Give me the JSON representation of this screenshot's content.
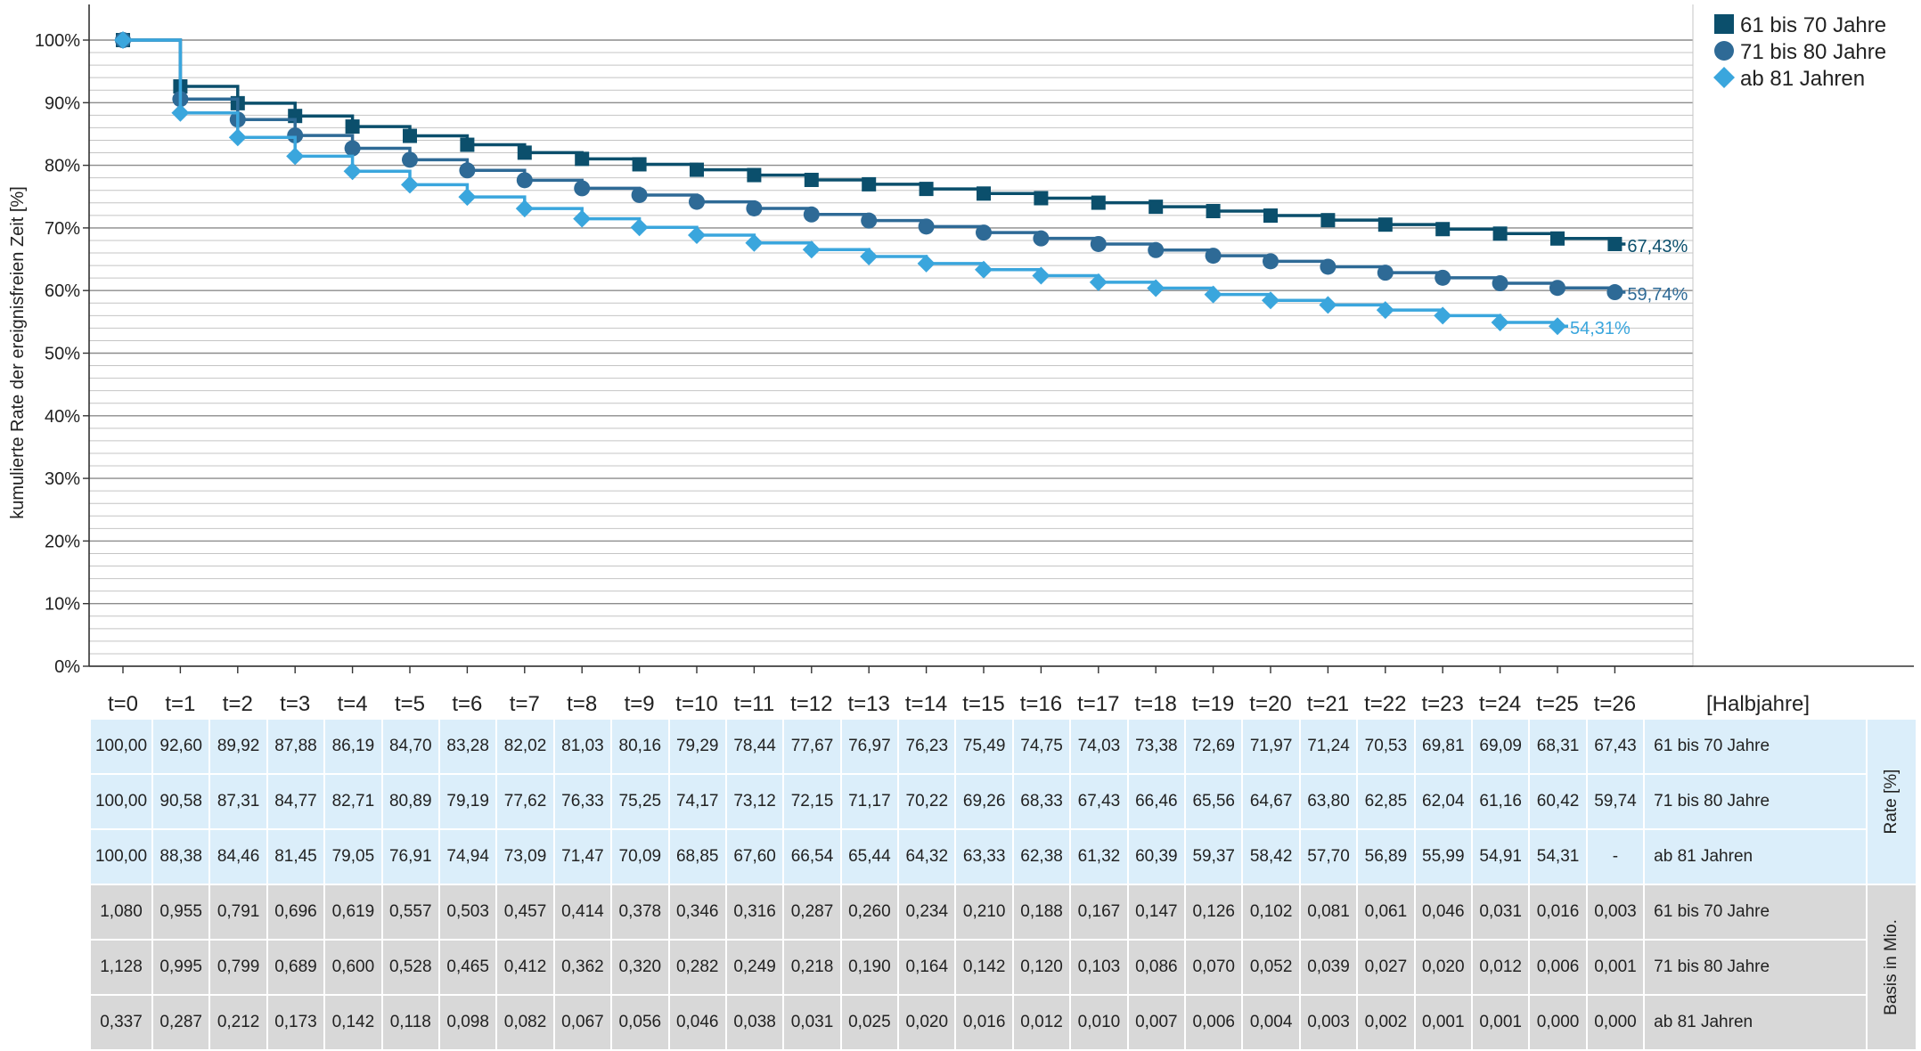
{
  "chart_data": {
    "type": "line",
    "step": true,
    "ylabel": "kumulierte Rate der ereignisfreien Zeit [%]",
    "xunit": "[Halbjahre]",
    "ylim": [
      0,
      100
    ],
    "yticks": [
      "0%",
      "10%",
      "20%",
      "30%",
      "40%",
      "50%",
      "60%",
      "70%",
      "80%",
      "90%",
      "100%"
    ],
    "categories": [
      "t=0",
      "t=1",
      "t=2",
      "t=3",
      "t=4",
      "t=5",
      "t=6",
      "t=7",
      "t=8",
      "t=9",
      "t=10",
      "t=11",
      "t=12",
      "t=13",
      "t=14",
      "t=15",
      "t=16",
      "t=17",
      "t=18",
      "t=19",
      "t=20",
      "t=21",
      "t=22",
      "t=23",
      "t=24",
      "t=25",
      "t=26"
    ],
    "grid": true,
    "legend_position": "top-right",
    "series": [
      {
        "name": "61 bis 70 Jahre",
        "color": "#0b4f6c",
        "marker": "square",
        "end_label": "67,43%",
        "values": [
          100.0,
          92.6,
          89.92,
          87.88,
          86.19,
          84.7,
          83.28,
          82.02,
          81.03,
          80.16,
          79.29,
          78.44,
          77.67,
          76.97,
          76.23,
          75.49,
          74.75,
          74.03,
          73.38,
          72.69,
          71.97,
          71.24,
          70.53,
          69.81,
          69.09,
          68.31,
          67.43
        ]
      },
      {
        "name": "71 bis 80 Jahre",
        "color": "#2e6a96",
        "marker": "circle",
        "end_label": "59,74%",
        "values": [
          100.0,
          90.58,
          87.31,
          84.77,
          82.71,
          80.89,
          79.19,
          77.62,
          76.33,
          75.25,
          74.17,
          73.12,
          72.15,
          71.17,
          70.22,
          69.26,
          68.33,
          67.43,
          66.46,
          65.56,
          64.67,
          63.8,
          62.85,
          62.04,
          61.16,
          60.42,
          59.74
        ]
      },
      {
        "name": "ab 81 Jahren",
        "color": "#3aa6dd",
        "marker": "diamond",
        "end_label": "54,31%",
        "values": [
          100.0,
          88.38,
          84.46,
          81.45,
          79.05,
          76.91,
          74.94,
          73.09,
          71.47,
          70.09,
          68.85,
          67.6,
          66.54,
          65.44,
          64.32,
          63.33,
          62.38,
          61.32,
          60.39,
          59.37,
          58.42,
          57.7,
          56.89,
          55.99,
          54.91,
          54.31,
          null
        ]
      }
    ]
  },
  "table": {
    "rate_label": "Rate [%]",
    "basis_label": "Basis in Mio.",
    "rate_rows": [
      {
        "label": "61 bis 70 Jahre",
        "cells": [
          "100,00",
          "92,60",
          "89,92",
          "87,88",
          "86,19",
          "84,70",
          "83,28",
          "82,02",
          "81,03",
          "80,16",
          "79,29",
          "78,44",
          "77,67",
          "76,97",
          "76,23",
          "75,49",
          "74,75",
          "74,03",
          "73,38",
          "72,69",
          "71,97",
          "71,24",
          "70,53",
          "69,81",
          "69,09",
          "68,31",
          "67,43"
        ]
      },
      {
        "label": "71 bis 80 Jahre",
        "cells": [
          "100,00",
          "90,58",
          "87,31",
          "84,77",
          "82,71",
          "80,89",
          "79,19",
          "77,62",
          "76,33",
          "75,25",
          "74,17",
          "73,12",
          "72,15",
          "71,17",
          "70,22",
          "69,26",
          "68,33",
          "67,43",
          "66,46",
          "65,56",
          "64,67",
          "63,80",
          "62,85",
          "62,04",
          "61,16",
          "60,42",
          "59,74"
        ]
      },
      {
        "label": "ab 81 Jahren",
        "cells": [
          "100,00",
          "88,38",
          "84,46",
          "81,45",
          "79,05",
          "76,91",
          "74,94",
          "73,09",
          "71,47",
          "70,09",
          "68,85",
          "67,60",
          "66,54",
          "65,44",
          "64,32",
          "63,33",
          "62,38",
          "61,32",
          "60,39",
          "59,37",
          "58,42",
          "57,70",
          "56,89",
          "55,99",
          "54,91",
          "54,31",
          "-"
        ]
      }
    ],
    "basis_rows": [
      {
        "label": "61 bis 70 Jahre",
        "cells": [
          "1,080",
          "0,955",
          "0,791",
          "0,696",
          "0,619",
          "0,557",
          "0,503",
          "0,457",
          "0,414",
          "0,378",
          "0,346",
          "0,316",
          "0,287",
          "0,260",
          "0,234",
          "0,210",
          "0,188",
          "0,167",
          "0,147",
          "0,126",
          "0,102",
          "0,081",
          "0,061",
          "0,046",
          "0,031",
          "0,016",
          "0,003"
        ]
      },
      {
        "label": "71 bis 80 Jahre",
        "cells": [
          "1,128",
          "0,995",
          "0,799",
          "0,689",
          "0,600",
          "0,528",
          "0,465",
          "0,412",
          "0,362",
          "0,320",
          "0,282",
          "0,249",
          "0,218",
          "0,190",
          "0,164",
          "0,142",
          "0,120",
          "0,103",
          "0,086",
          "0,070",
          "0,052",
          "0,039",
          "0,027",
          "0,020",
          "0,012",
          "0,006",
          "0,001"
        ]
      },
      {
        "label": "ab 81 Jahren",
        "cells": [
          "0,337",
          "0,287",
          "0,212",
          "0,173",
          "0,142",
          "0,118",
          "0,098",
          "0,082",
          "0,067",
          "0,056",
          "0,046",
          "0,038",
          "0,031",
          "0,025",
          "0,020",
          "0,016",
          "0,012",
          "0,010",
          "0,007",
          "0,006",
          "0,004",
          "0,003",
          "0,002",
          "0,001",
          "0,001",
          "0,000",
          "0,000"
        ]
      }
    ]
  }
}
